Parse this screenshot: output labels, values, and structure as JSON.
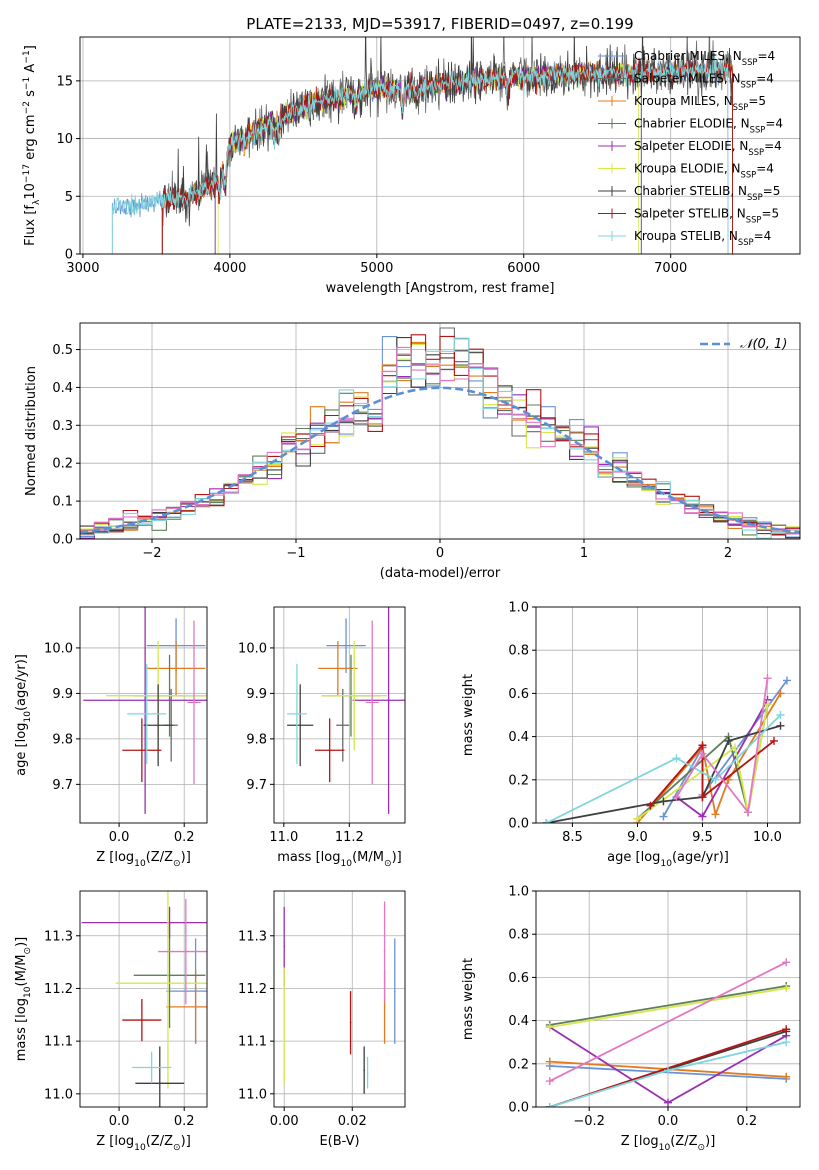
{
  "figure_title": "PLATE=2133, MJD=53917, FIBERID=0497, z=0.199",
  "colors": {
    "CM": "#6a93d4",
    "SM": "#6b6b6b",
    "KM": "#e07b22",
    "CE": "#5e7f5a",
    "SE": "#9a2fb0",
    "KE": "#d4e84a",
    "CS": "#3f3f3f",
    "SS": "#b51414",
    "KS": "#7fd6dc",
    "pink": "#e377c2",
    "normal": "#5b8fd6"
  },
  "chart_data": [
    {
      "id": "spectrum",
      "type": "line",
      "title": "",
      "xlabel": "wavelength [Angstrom, rest frame]",
      "ylabel": "Flux [fλ10⁻¹⁷ erg cm⁻² s⁻¹ A⁻¹]",
      "xlim": [
        2980,
        7880
      ],
      "ylim": [
        0,
        18.8
      ],
      "xticks": [
        3000,
        4000,
        5000,
        6000,
        7000
      ],
      "yticks": [
        0,
        5,
        10,
        15
      ],
      "legend": "upper right",
      "series_order": [
        "CM",
        "SM",
        "KM",
        "CE",
        "SE",
        "KE",
        "CS",
        "SS",
        "KS"
      ],
      "legend_labels": {
        "CM": "Chabrier MILES, N_SSP=4",
        "SM": "Salpeter MILES, N_SSP=4",
        "KM": "Kroupa MILES, N_SSP=5",
        "CE": "Chabrier ELODIE, N_SSP=4",
        "SE": "Salpeter ELODIE, N_SSP=4",
        "KE": "Kroupa ELODIE, N_SSP=4",
        "CS": "Chabrier STELIB, N_SSP=5",
        "SS": "Salpeter STELIB, N_SSP=5",
        "KS": "Kroupa STELIB, N_SSP=4"
      },
      "series_range": {
        "CM": [
          3200,
          7390
        ],
        "SM": [
          3540,
          7420
        ],
        "KM": [
          3540,
          7420
        ],
        "CE": [
          3900,
          6800
        ],
        "SE": [
          3900,
          6800
        ],
        "KE": [
          3920,
          6780
        ],
        "CS": [
          3540,
          7420
        ],
        "SS": [
          3540,
          7420
        ],
        "KS": [
          3200,
          7390
        ]
      },
      "continuum": [
        [
          3200,
          4.0
        ],
        [
          3500,
          4.5
        ],
        [
          3700,
          4.9
        ],
        [
          3900,
          6.0
        ],
        [
          4000,
          9.5
        ],
        [
          4200,
          10.8
        ],
        [
          4400,
          12.2
        ],
        [
          4600,
          13.2
        ],
        [
          4800,
          13.8
        ],
        [
          5000,
          14.3
        ],
        [
          5200,
          14.3
        ],
        [
          5500,
          14.8
        ],
        [
          5800,
          15.2
        ],
        [
          6000,
          15.4
        ],
        [
          6300,
          15.6
        ],
        [
          6600,
          15.7
        ],
        [
          7000,
          15.8
        ],
        [
          7400,
          16.0
        ]
      ],
      "features": [
        [
          3933,
          -2.2
        ],
        [
          3968,
          -2.4
        ],
        [
          4101,
          -0.8
        ],
        [
          4304,
          -1.6
        ],
        [
          4340,
          -0.7
        ],
        [
          4861,
          -0.9
        ],
        [
          5175,
          -1.5
        ],
        [
          5270,
          -0.8
        ],
        [
          5890,
          -1.2
        ]
      ]
    },
    {
      "id": "residuals",
      "type": "histogram",
      "xlabel": "(data-model)/error",
      "ylabel": "Normed distribution",
      "xlim": [
        -2.5,
        2.5
      ],
      "ylim": [
        0,
        0.57
      ],
      "xticks": [
        -2,
        -1,
        0,
        1,
        2
      ],
      "yticks": [
        0.0,
        0.1,
        0.2,
        0.3,
        0.4,
        0.5
      ],
      "bin_width": 0.1,
      "legend": "upper right",
      "normal_label": "𝒩(0, 1)",
      "series_order": [
        "CM",
        "SM",
        "KM",
        "CE",
        "SE",
        "KE",
        "CS",
        "SS",
        "KS"
      ]
    },
    {
      "id": "age_vs_Z",
      "type": "errorbar",
      "xlabel": "Z [log10(Z/Z⊙)]",
      "ylabel": "age  [log10(age/yr)]",
      "xlim": [
        -0.12,
        0.27
      ],
      "ylim": [
        9.615,
        10.09
      ],
      "xticks": [
        0.0,
        0.2
      ],
      "yticks": [
        9.7,
        9.8,
        9.9,
        10.0
      ],
      "points": [
        {
          "s": "CM",
          "x": 0.175,
          "y": 10.005,
          "xe": 0.09,
          "ye": 0.06
        },
        {
          "s": "SM",
          "x": 0.16,
          "y": 9.83,
          "xe": 0.02,
          "ye": 0.08
        },
        {
          "s": "KM",
          "x": 0.175,
          "y": 9.955,
          "xe": 0.09,
          "ye": 0.06
        },
        {
          "s": "CE",
          "x": 0.155,
          "y": 9.895,
          "xe": 0.11,
          "ye": 0.09
        },
        {
          "s": "SE",
          "x": 0.08,
          "y": 9.885,
          "xe": 0.19,
          "ye": 0.25
        },
        {
          "s": "KE",
          "x": 0.12,
          "y": 9.895,
          "xe": 0.16,
          "ye": 0.12
        },
        {
          "s": "CS",
          "x": 0.12,
          "y": 9.83,
          "xe": 0.045,
          "ye": 0.09
        },
        {
          "s": "SS",
          "x": 0.07,
          "y": 9.775,
          "xe": 0.06,
          "ye": 0.07
        },
        {
          "s": "KS",
          "x": 0.085,
          "y": 9.855,
          "xe": 0.06,
          "ye": 0.11
        },
        {
          "s": "pink",
          "x": 0.23,
          "y": 9.88,
          "xe": 0.02,
          "ye": 0.18
        }
      ]
    },
    {
      "id": "age_vs_mass",
      "type": "errorbar",
      "xlabel": "mass [log10(M/M⊙)]",
      "ylabel": "",
      "xlim": [
        10.97,
        11.37
      ],
      "ylim": [
        9.615,
        10.09
      ],
      "xticks": [
        11.0,
        11.2
      ],
      "yticks": [
        9.7,
        9.8,
        9.9,
        10.0
      ],
      "points": [
        {
          "s": "CM",
          "x": 11.19,
          "y": 10.005,
          "xe": 0.06,
          "ye": 0.06
        },
        {
          "s": "SM",
          "x": 11.18,
          "y": 9.83,
          "xe": 0.02,
          "ye": 0.08
        },
        {
          "s": "KM",
          "x": 11.165,
          "y": 9.955,
          "xe": 0.06,
          "ye": 0.06
        },
        {
          "s": "CE",
          "x": 11.205,
          "y": 9.895,
          "xe": 0.09,
          "ye": 0.09
        },
        {
          "s": "SE",
          "x": 11.32,
          "y": 9.885,
          "xe": 0.11,
          "ye": 0.25
        },
        {
          "s": "KE",
          "x": 11.215,
          "y": 9.895,
          "xe": 0.1,
          "ye": 0.12
        },
        {
          "s": "CS",
          "x": 11.05,
          "y": 9.83,
          "xe": 0.04,
          "ye": 0.09
        },
        {
          "s": "SS",
          "x": 11.14,
          "y": 9.775,
          "xe": 0.045,
          "ye": 0.07
        },
        {
          "s": "KS",
          "x": 11.04,
          "y": 9.855,
          "xe": 0.03,
          "ye": 0.11
        },
        {
          "s": "pink",
          "x": 11.27,
          "y": 9.88,
          "xe": 0.02,
          "ye": 0.18
        }
      ]
    },
    {
      "id": "mass_weight_vs_age",
      "type": "line",
      "xlabel": "age  [log10(age/yr)]",
      "ylabel": "mass weight",
      "xlim": [
        8.22,
        10.25
      ],
      "ylim": [
        0,
        1.0
      ],
      "xticks": [
        8.5,
        9.0,
        9.5,
        10.0
      ],
      "yticks": [
        0.0,
        0.2,
        0.4,
        0.6,
        0.8,
        1.0
      ],
      "series": [
        {
          "s": "CM",
          "pts": [
            [
              9.2,
              0.03
            ],
            [
              9.5,
              0.35
            ],
            [
              9.5,
              0.13
            ],
            [
              10.15,
              0.66
            ]
          ]
        },
        {
          "s": "KM",
          "pts": [
            [
              9.0,
              0.0
            ],
            [
              9.5,
              0.35
            ],
            [
              9.6,
              0.04
            ],
            [
              9.7,
              0.2
            ],
            [
              10.1,
              0.6
            ]
          ]
        },
        {
          "s": "CE",
          "pts": [
            [
              9.0,
              0.02
            ],
            [
              9.7,
              0.4
            ],
            [
              9.85,
              0.05
            ],
            [
              10.0,
              0.55
            ]
          ]
        },
        {
          "s": "SE",
          "pts": [
            [
              9.3,
              0.12
            ],
            [
              9.5,
              0.03
            ],
            [
              10.0,
              0.57
            ]
          ]
        },
        {
          "s": "KE",
          "pts": [
            [
              9.0,
              0.02
            ],
            [
              9.75,
              0.35
            ],
            [
              9.85,
              0.05
            ],
            [
              10.0,
              0.55
            ]
          ]
        },
        {
          "s": "CS",
          "pts": [
            [
              8.3,
              0.0
            ],
            [
              9.2,
              0.1
            ],
            [
              9.5,
              0.12
            ],
            [
              9.7,
              0.38
            ],
            [
              10.1,
              0.45
            ]
          ]
        },
        {
          "s": "SS",
          "pts": [
            [
              9.1,
              0.08
            ],
            [
              9.5,
              0.36
            ],
            [
              9.5,
              0.12
            ],
            [
              10.05,
              0.38
            ]
          ]
        },
        {
          "s": "KS",
          "pts": [
            [
              8.3,
              0.0
            ],
            [
              9.3,
              0.3
            ],
            [
              9.6,
              0.2
            ],
            [
              10.1,
              0.5
            ]
          ]
        },
        {
          "s": "pink",
          "pts": [
            [
              9.3,
              0.12
            ],
            [
              9.5,
              0.32
            ],
            [
              9.85,
              0.05
            ],
            [
              10.0,
              0.67
            ]
          ]
        }
      ]
    },
    {
      "id": "mass_vs_Z",
      "type": "errorbar",
      "xlabel": "Z [log10(Z/Z⊙)]",
      "ylabel": "mass [log10(M/M⊙)]",
      "xlim": [
        -0.12,
        0.27
      ],
      "ylim": [
        10.975,
        11.385
      ],
      "xticks": [
        0.0,
        0.2
      ],
      "yticks": [
        11.0,
        11.1,
        11.2,
        11.3
      ],
      "points": [
        {
          "s": "CM",
          "x": 0.235,
          "y": 11.195,
          "xe": 0.09,
          "ye": 0.1
        },
        {
          "s": "KM",
          "x": 0.235,
          "y": 11.165,
          "xe": 0.09,
          "ye": 0.07
        },
        {
          "s": "CE",
          "x": 0.155,
          "y": 11.225,
          "xe": 0.11,
          "ye": 0.1
        },
        {
          "s": "SE",
          "x": 0.155,
          "y": 11.325,
          "xe": 0.27,
          "ye": 0.03
        },
        {
          "s": "KE",
          "x": 0.15,
          "y": 11.21,
          "xe": 0.16,
          "ye": 0.2
        },
        {
          "s": "CS",
          "x": 0.125,
          "y": 11.02,
          "xe": 0.075,
          "ye": 0.07
        },
        {
          "s": "SS",
          "x": 0.07,
          "y": 11.14,
          "xe": 0.06,
          "ye": 0.04
        },
        {
          "s": "KS",
          "x": 0.1,
          "y": 11.05,
          "xe": 0.06,
          "ye": 0.03
        },
        {
          "s": "pink",
          "x": 0.205,
          "y": 11.27,
          "xe": 0.085,
          "ye": 0.1
        }
      ]
    },
    {
      "id": "mass_vs_ebv",
      "type": "errorbar",
      "xlabel": "E(B-V)",
      "ylabel": "",
      "xlim": [
        -0.003,
        0.0355
      ],
      "ylim": [
        10.975,
        11.385
      ],
      "xticks": [
        0.0,
        0.02
      ],
      "yticks": [
        11.0,
        11.1,
        11.2,
        11.3
      ],
      "points": [
        {
          "s": "CM",
          "x": 0.0325,
          "y": 11.195,
          "xe": 0.0,
          "ye": 0.1
        },
        {
          "s": "KM",
          "x": 0.0295,
          "y": 11.165,
          "xe": 0.0,
          "ye": 0.07
        },
        {
          "s": "SE",
          "x": 0.0,
          "y": 11.28,
          "xe": 0.0,
          "ye": 0.075
        },
        {
          "s": "KE",
          "x": 0.0,
          "y": 11.13,
          "xe": 0.0,
          "ye": 0.11
        },
        {
          "s": "CS",
          "x": 0.0235,
          "y": 11.045,
          "xe": 0.0,
          "ye": 0.045
        },
        {
          "s": "SS",
          "x": 0.0195,
          "y": 11.135,
          "xe": 0.0,
          "ye": 0.06
        },
        {
          "s": "KS",
          "x": 0.0245,
          "y": 11.04,
          "xe": 0.0,
          "ye": 0.03
        },
        {
          "s": "pink",
          "x": 0.0295,
          "y": 11.27,
          "xe": 0.0,
          "ye": 0.095
        }
      ]
    },
    {
      "id": "mass_weight_vs_Z",
      "type": "line",
      "xlabel": "Z [log10(Z/Z⊙)]",
      "ylabel": "mass weight",
      "xlim": [
        -0.335,
        0.335
      ],
      "ylim": [
        0,
        1.0
      ],
      "xticks": [
        -0.2,
        0.0,
        0.2
      ],
      "yticks": [
        0.0,
        0.2,
        0.4,
        0.6,
        0.8,
        1.0
      ],
      "series": [
        {
          "s": "CM",
          "pts": [
            [
              -0.3,
              0.19
            ],
            [
              0.3,
              0.13
            ]
          ]
        },
        {
          "s": "KM",
          "pts": [
            [
              -0.3,
              0.21
            ],
            [
              0.3,
              0.14
            ]
          ]
        },
        {
          "s": "CE",
          "pts": [
            [
              -0.3,
              0.38
            ],
            [
              0.3,
              0.56
            ]
          ]
        },
        {
          "s": "SE",
          "pts": [
            [
              -0.3,
              0.37
            ],
            [
              0.0,
              0.02
            ],
            [
              0.3,
              0.33
            ]
          ]
        },
        {
          "s": "KE",
          "pts": [
            [
              -0.3,
              0.37
            ],
            [
              0.3,
              0.55
            ]
          ]
        },
        {
          "s": "CS",
          "pts": [
            [
              -0.3,
              0.0
            ],
            [
              0.3,
              0.35
            ]
          ]
        },
        {
          "s": "SS",
          "pts": [
            [
              -0.3,
              0.0
            ],
            [
              0.3,
              0.36
            ]
          ]
        },
        {
          "s": "KS",
          "pts": [
            [
              -0.3,
              0.0
            ],
            [
              0.0,
              0.17
            ],
            [
              0.3,
              0.3
            ]
          ]
        },
        {
          "s": "pink",
          "pts": [
            [
              -0.3,
              0.12
            ],
            [
              0.3,
              0.67
            ]
          ]
        }
      ]
    }
  ]
}
